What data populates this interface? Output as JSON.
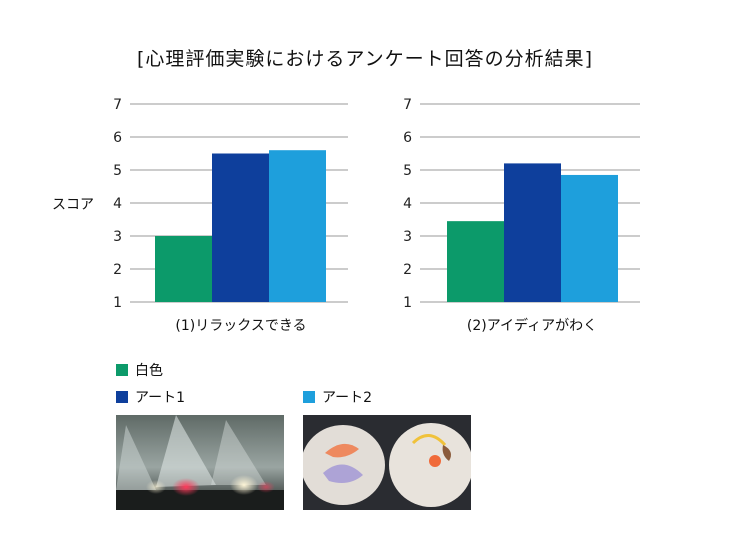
{
  "title": "[心理評価実験におけるアンケート回答の分析結果]",
  "ylabel": "スコア",
  "legend": [
    {
      "label": "白色",
      "color": "#0c9a6a"
    },
    {
      "label": "アート1",
      "color": "#0e3f9c"
    },
    {
      "label": "アート2",
      "color": "#1e9fdc"
    }
  ],
  "chart_data": [
    {
      "type": "bar",
      "caption": "(1)リラックスできる",
      "categories": [
        "白色",
        "アート1",
        "アート2"
      ],
      "values": [
        3.0,
        5.5,
        5.6
      ],
      "ylim": [
        1,
        7
      ],
      "yticks": [
        1,
        2,
        3,
        4,
        5,
        6,
        7
      ],
      "grid": true
    },
    {
      "type": "bar",
      "caption": "(2)アイディアがわく",
      "categories": [
        "白色",
        "アート1",
        "アート2"
      ],
      "values": [
        3.45,
        5.2,
        4.85
      ],
      "ylim": [
        1,
        7
      ],
      "yticks": [
        1,
        2,
        3,
        4,
        5,
        6,
        7
      ],
      "grid": true
    }
  ],
  "photos": [
    {
      "icon": "photo-art1-light-sculptures"
    },
    {
      "icon": "photo-art2-glass-plates"
    }
  ]
}
